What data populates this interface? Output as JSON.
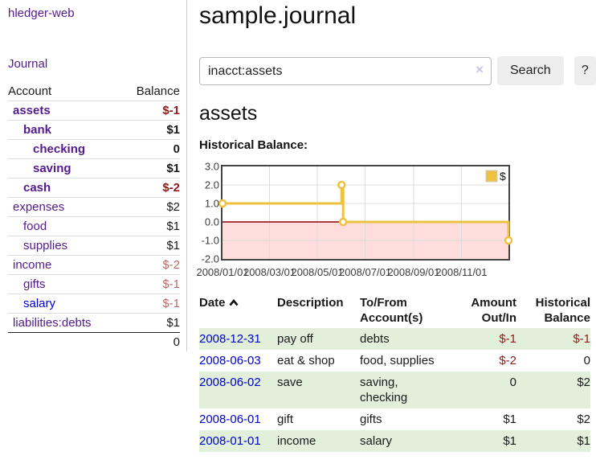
{
  "brand": "hledger-web",
  "colors": {
    "link_visited_purple": "#551a8b",
    "link_blue": "#0000cc",
    "negative_strong": "#8b1c1c",
    "negative_muted": "#b96a6a",
    "row_stripe_green": "#e1efdb",
    "chart_series_gold": "#EDC240",
    "chart_negative_region": "#ffdddd",
    "chart_zero_line": "#8b0000",
    "chart_border": "#444444"
  },
  "sidebar": {
    "journal_link": "Journal",
    "accounts": {
      "col_account": "Account",
      "col_balance": "Balance",
      "rows": [
        {
          "name": "assets",
          "depth": 1,
          "bold": true,
          "balance": "$-1",
          "tone": "neg"
        },
        {
          "name": "bank",
          "depth": 2,
          "bold": true,
          "balance": "$1",
          "tone": ""
        },
        {
          "name": "checking",
          "depth": 3,
          "bold": true,
          "balance": "0",
          "tone": ""
        },
        {
          "name": "saving",
          "depth": 3,
          "bold": true,
          "balance": "$1",
          "tone": ""
        },
        {
          "name": "cash",
          "depth": 2,
          "bold": true,
          "balance": "$-2",
          "tone": "neg"
        },
        {
          "name": "expenses",
          "depth": 1,
          "bold": false,
          "balance": "$2",
          "tone": ""
        },
        {
          "name": "food",
          "depth": 2,
          "bold": false,
          "balance": "$1",
          "tone": ""
        },
        {
          "name": "supplies",
          "depth": 2,
          "bold": false,
          "balance": "$1",
          "tone": ""
        },
        {
          "name": "income",
          "depth": 1,
          "bold": false,
          "balance": "$-2",
          "tone": "neg-soft"
        },
        {
          "name": "gifts",
          "depth": 2,
          "bold": false,
          "balance": "$-1",
          "tone": "neg-soft"
        },
        {
          "name": "salary",
          "depth": 2,
          "bold": false,
          "balance": "$-1",
          "tone": "neg-soft",
          "link_style": "unvisited"
        },
        {
          "name": "liabilities:debts",
          "depth": 1,
          "bold": false,
          "balance": "$1",
          "tone": ""
        }
      ],
      "total": "0"
    }
  },
  "main": {
    "title": "sample.journal",
    "search": {
      "value": "inacct:assets",
      "clear_label": "×",
      "search_button": "Search",
      "help_button": "?"
    },
    "account_heading": "assets",
    "chart_heading": "Historical Balance:"
  },
  "chart_data": {
    "type": "line",
    "step": true,
    "title": "Historical Balance:",
    "series": [
      {
        "name": "$",
        "color": "#EDC240",
        "points": [
          [
            "2008-01-01",
            1
          ],
          [
            "2008-06-01",
            2
          ],
          [
            "2008-06-03",
            0
          ],
          [
            "2008-12-31",
            -1
          ]
        ]
      }
    ],
    "x_range": [
      "2008-01-01",
      "2008-12-31"
    ],
    "x_ticks": [
      "2008/01/01",
      "2008/03/01",
      "2008/05/01",
      "2008/07/01",
      "2008/09/01",
      "2008/11/01"
    ],
    "y_ticks": [
      "3.0",
      "2.0",
      "1.0",
      "0.0",
      "-1.0",
      "-2.0"
    ],
    "ylim": [
      -2,
      3
    ],
    "grid": true,
    "legend_position": "top-right",
    "negative_region_fill": "#ffdddd",
    "zero_line_color": "#8b0000"
  },
  "register": {
    "headers": {
      "date": "Date",
      "description": "Description",
      "accounts": "To/From Account(s)",
      "amount": "Amount Out/In",
      "balance": "Historical Balance"
    },
    "rows": [
      {
        "date": "2008-12-31",
        "description": "pay off",
        "accounts": "debts",
        "amount": "$-1",
        "amount_tone": "neg",
        "balance": "$-1",
        "balance_tone": "neg"
      },
      {
        "date": "2008-06-03",
        "description": "eat & shop",
        "accounts": "food, supplies",
        "amount": "$-2",
        "amount_tone": "neg",
        "balance": "0",
        "balance_tone": ""
      },
      {
        "date": "2008-06-02",
        "description": "save",
        "accounts": "saving, checking",
        "amount": "0",
        "amount_tone": "",
        "balance": "$2",
        "balance_tone": ""
      },
      {
        "date": "2008-06-01",
        "description": "gift",
        "accounts": "gifts",
        "amount": "$1",
        "amount_tone": "",
        "balance": "$2",
        "balance_tone": ""
      },
      {
        "date": "2008-01-01",
        "description": "income",
        "accounts": "salary",
        "amount": "$1",
        "amount_tone": "",
        "balance": "$1",
        "balance_tone": ""
      }
    ]
  }
}
